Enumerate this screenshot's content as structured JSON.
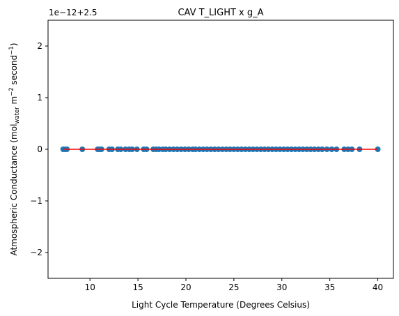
{
  "chart_data": {
    "type": "scatter",
    "title": "CAV T_LIGHT x g_A",
    "xlabel": "Light Cycle Temperature (Degrees Celsius)",
    "ylabel": {
      "prefix": "Atmospheric Conductance (mol",
      "sub": "water",
      "mid1": " m",
      "sup1": "−2",
      "mid2": " second",
      "sup2": "−1",
      "suffix": ")"
    },
    "offset_text": "1e−12+2.5",
    "xlim": [
      5.63,
      41.63
    ],
    "ylim": [
      -2.5,
      2.5
    ],
    "y_offset": 2.5,
    "y_scale_factor": 1e-12,
    "grid": false,
    "xticks": [
      {
        "value": 10,
        "label": "10"
      },
      {
        "value": 15,
        "label": "15"
      },
      {
        "value": 20,
        "label": "20"
      },
      {
        "value": 25,
        "label": "25"
      },
      {
        "value": 30,
        "label": "30"
      },
      {
        "value": 35,
        "label": "35"
      },
      {
        "value": 40,
        "label": "40"
      }
    ],
    "yticks": [
      {
        "value": -2,
        "label": "−2"
      },
      {
        "value": -1,
        "label": "−1"
      },
      {
        "value": 0,
        "label": "0"
      },
      {
        "value": 1,
        "label": "1"
      },
      {
        "value": 2,
        "label": "2"
      }
    ],
    "series": [
      {
        "kind": "scatter",
        "color": "#1f77b4",
        "x": [
          7.2,
          7.4,
          7.6,
          9.2,
          10.8,
          11.0,
          11.2,
          12.0,
          12.3,
          12.9,
          13.2,
          13.7,
          14.1,
          14.4,
          14.9,
          15.6,
          15.9,
          16.6,
          16.9,
          17.2,
          17.6,
          17.9,
          18.3,
          18.7,
          19.1,
          19.5,
          19.9,
          20.3,
          20.7,
          21.0,
          21.4,
          21.8,
          22.2,
          22.6,
          23.0,
          23.4,
          23.8,
          24.2,
          24.6,
          25.0,
          25.4,
          25.8,
          26.2,
          26.6,
          27.0,
          27.4,
          27.8,
          28.2,
          28.6,
          29.0,
          29.4,
          29.8,
          30.2,
          30.6,
          31.0,
          31.4,
          31.8,
          32.2,
          32.6,
          33.0,
          33.4,
          33.8,
          34.2,
          34.7,
          35.2,
          35.7,
          36.5,
          36.9,
          37.3,
          38.1,
          40.0
        ],
        "y": [
          0,
          0,
          0,
          0,
          0,
          0,
          0,
          0,
          0,
          0,
          0,
          0,
          0,
          0,
          0,
          0,
          0,
          0,
          0,
          0,
          0,
          0,
          0,
          0,
          0,
          0,
          0,
          0,
          0,
          0,
          0,
          0,
          0,
          0,
          0,
          0,
          0,
          0,
          0,
          0,
          0,
          0,
          0,
          0,
          0,
          0,
          0,
          0,
          0,
          0,
          0,
          0,
          0,
          0,
          0,
          0,
          0,
          0,
          0,
          0,
          0,
          0,
          0,
          0,
          0,
          0,
          0,
          0,
          0,
          0,
          0
        ]
      },
      {
        "kind": "line",
        "color": "#ff0000",
        "x": [
          7.2,
          40.0
        ],
        "y": [
          0,
          0
        ]
      }
    ]
  }
}
